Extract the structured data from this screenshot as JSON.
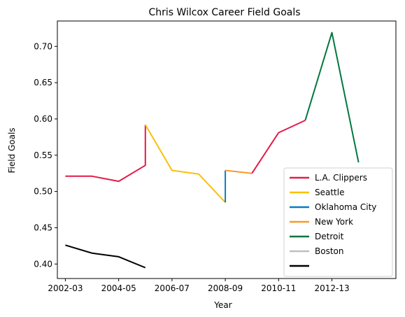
{
  "chart_data": {
    "type": "line",
    "title": "Chris Wilcox Career Field Goals",
    "xlabel": "Year",
    "ylabel": "Field Goals",
    "x_ticks": [
      "2002-03",
      "2004-05",
      "2006-07",
      "2008-09",
      "2010-11",
      "2012-13"
    ],
    "y_ticks": [
      "0.40",
      "0.45",
      "0.50",
      "0.55",
      "0.60",
      "0.65",
      "0.70"
    ],
    "xlim": [
      2001.7,
      2014.4
    ],
    "ylim": [
      0.38,
      0.735
    ],
    "grid": false,
    "legend_position": "lower-right",
    "series": [
      {
        "name": "L.A. Clippers",
        "color": "#e31b48",
        "points": [
          [
            2002,
            0.521
          ],
          [
            2003,
            0.521
          ],
          [
            2004,
            0.514
          ],
          [
            2005,
            0.536
          ],
          [
            2005,
            0.592
          ]
        ]
      },
      {
        "name": "Seattle",
        "color": "#f8c10d",
        "points": [
          [
            2005,
            0.592
          ],
          [
            2006,
            0.529
          ],
          [
            2007,
            0.524
          ],
          [
            2008,
            0.485
          ]
        ]
      },
      {
        "name": "Oklahoma City",
        "color": "#0a7bc1",
        "points": [
          [
            2008,
            0.485
          ],
          [
            2008,
            0.529
          ]
        ]
      },
      {
        "name": "New York",
        "color": "#f79a2c",
        "points": [
          [
            2008,
            0.529
          ],
          [
            2009,
            0.525
          ]
        ]
      },
      {
        "name": "L.A. Clippers",
        "color": "#e31b48",
        "points": [
          [
            2009,
            0.525
          ],
          [
            2010,
            0.581
          ],
          [
            2011,
            0.598
          ]
        ]
      },
      {
        "name": "Detroit",
        "color": "#00783e",
        "points": [
          [
            2011,
            0.598
          ],
          [
            2012,
            0.719
          ],
          [
            2013,
            0.54
          ]
        ]
      },
      {
        "name": "Boston",
        "color": "#bfbfbf",
        "points": []
      },
      {
        "name": "",
        "color": "#000000",
        "points": [
          [
            2002,
            0.426
          ],
          [
            2003,
            0.415
          ],
          [
            2004,
            0.41
          ],
          [
            2005,
            0.395
          ]
        ]
      }
    ],
    "legend": [
      {
        "name": "L.A. Clippers",
        "color": "#e31b48"
      },
      {
        "name": "Seattle",
        "color": "#f8c10d"
      },
      {
        "name": "Oklahoma City",
        "color": "#0a7bc1"
      },
      {
        "name": "New York",
        "color": "#f79a2c"
      },
      {
        "name": "Detroit",
        "color": "#00783e"
      },
      {
        "name": "Boston",
        "color": "#bfbfbf"
      },
      {
        "name": "",
        "color": "#000000"
      }
    ]
  }
}
